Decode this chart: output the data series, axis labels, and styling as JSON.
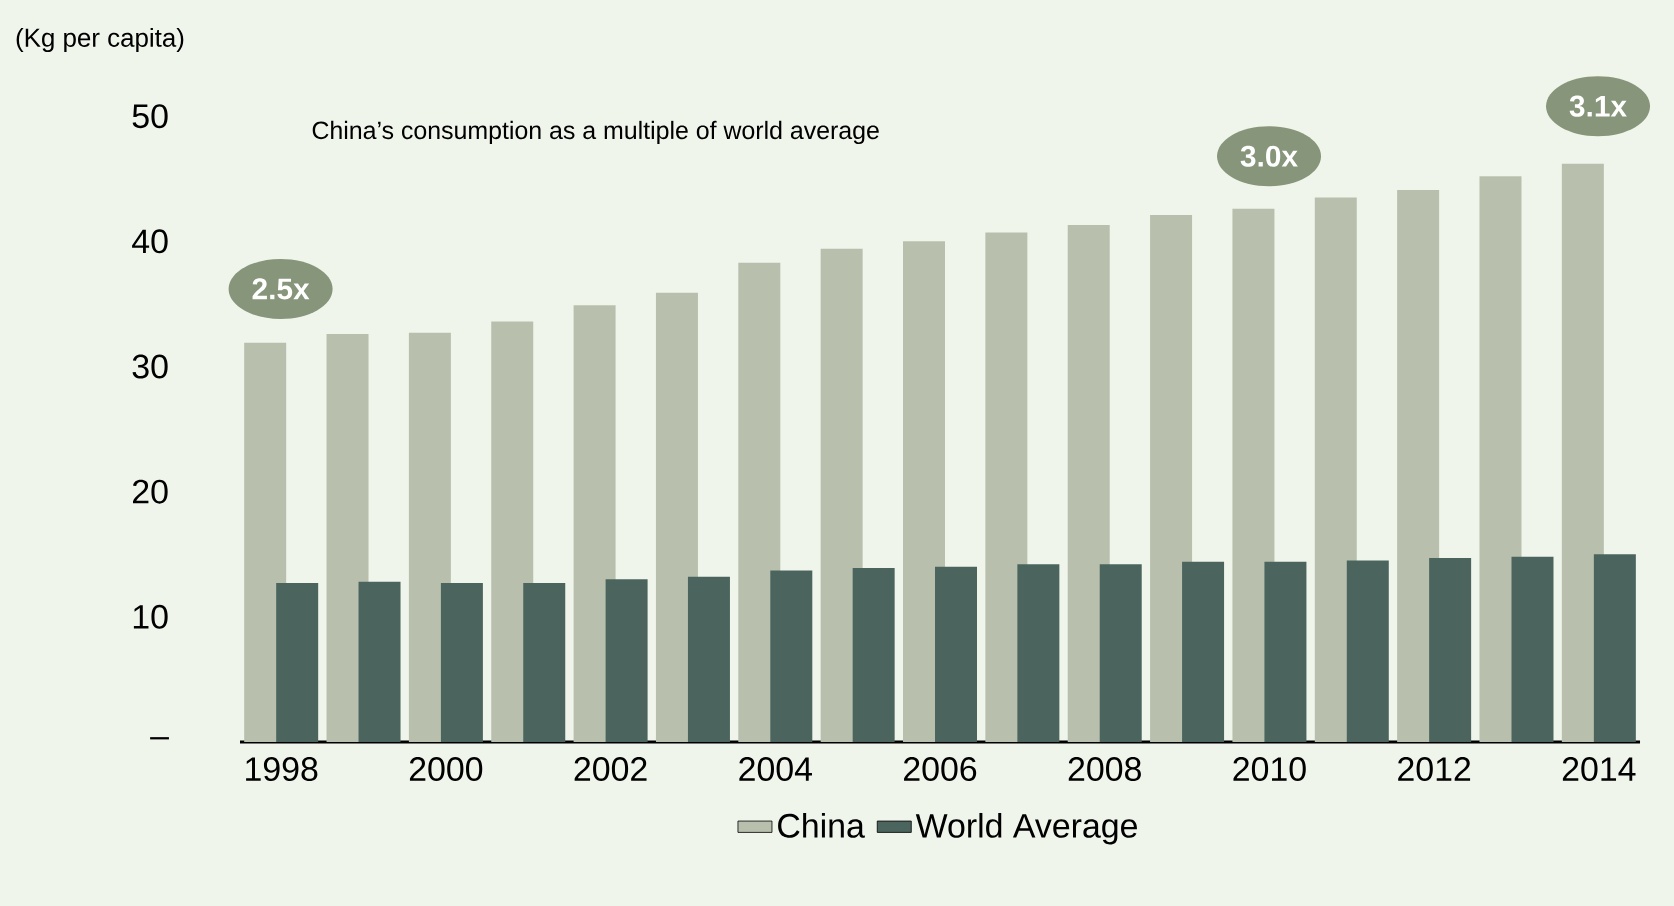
{
  "chart_data": {
    "type": "bar",
    "ylabel": "(Kg per capita)",
    "categories": [
      "1998",
      null,
      "2000",
      null,
      "2002",
      null,
      "2004",
      null,
      "2006",
      null,
      "2008",
      null,
      "2010",
      null,
      "2012",
      null,
      "2014"
    ],
    "series": [
      {
        "name": "China",
        "color": "#b8c0ad",
        "values": [
          31.9,
          32.6,
          32.7,
          33.6,
          34.9,
          35.9,
          38.3,
          39.4,
          40.0,
          40.7,
          41.3,
          42.1,
          42.6,
          43.5,
          44.1,
          45.2,
          46.2
        ]
      },
      {
        "name": "World Average",
        "color": "#4b655e",
        "values": [
          12.7,
          12.8,
          12.7,
          12.7,
          13.0,
          13.2,
          13.7,
          13.9,
          14.0,
          14.2,
          14.2,
          14.4,
          14.4,
          14.5,
          14.7,
          14.8,
          15.0
        ]
      }
    ],
    "ylim": [
      0,
      50
    ],
    "yticks": [
      {
        "value": 0,
        "label": "–"
      },
      10,
      20,
      30,
      40,
      50
    ],
    "annotations": [
      "China’s consumption as a multiple of world average",
      "2.5x",
      "3.0x",
      "3.1x"
    ],
    "grid": false,
    "legend": "bottom"
  }
}
